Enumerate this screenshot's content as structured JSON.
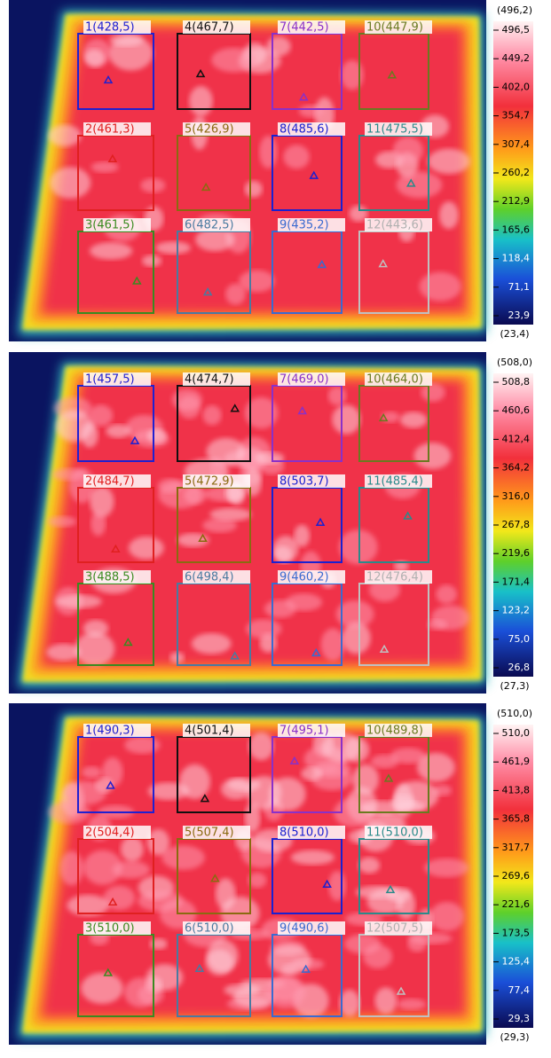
{
  "panels": [
    {
      "regions": [
        "1(428,5)",
        "2(461,3)",
        "3(461,5)",
        "4(467,7)",
        "5(426,9)",
        "6(482,5)",
        "7(442,5)",
        "8(485,6)",
        "9(435,2)",
        "10(447,9)",
        "11(475,5)",
        "12(443,6)"
      ],
      "colorbar": {
        "max_label": "(496,2)",
        "ticks": [
          "496,5",
          "449,2",
          "402,0",
          "354,7",
          "307,4",
          "260,2",
          "212,9",
          "165,6",
          "118,4",
          "71,1",
          "23,9"
        ],
        "min_label": "(23,4)"
      }
    },
    {
      "regions": [
        "1(457,5)",
        "2(484,7)",
        "3(488,5)",
        "4(474,7)",
        "5(472,9)",
        "6(498,4)",
        "7(469,0)",
        "8(503,7)",
        "9(460,2)",
        "10(464,0)",
        "11(485,4)",
        "12(476,4)"
      ],
      "colorbar": {
        "max_label": "(508,0)",
        "ticks": [
          "508,8",
          "460,6",
          "412,4",
          "364,2",
          "316,0",
          "267,8",
          "219,6",
          "171,4",
          "123,2",
          "75,0",
          "26,8"
        ],
        "min_label": "(27,3)"
      }
    },
    {
      "regions": [
        "1(490,3)",
        "2(504,4)",
        "3(510,0)",
        "4(501,4)",
        "5(507,4)",
        "6(510,0)",
        "7(495,1)",
        "8(510,0)",
        "9(490,6)",
        "10(489,8)",
        "11(510,0)",
        "12(507,5)"
      ],
      "colorbar": {
        "max_label": "(510,0)",
        "ticks": [
          "510,0",
          "461,9",
          "413,8",
          "365,8",
          "317,7",
          "269,6",
          "221,6",
          "173,5",
          "125,4",
          "77,4",
          "29,3"
        ],
        "min_label": "(29,3)"
      }
    }
  ]
}
